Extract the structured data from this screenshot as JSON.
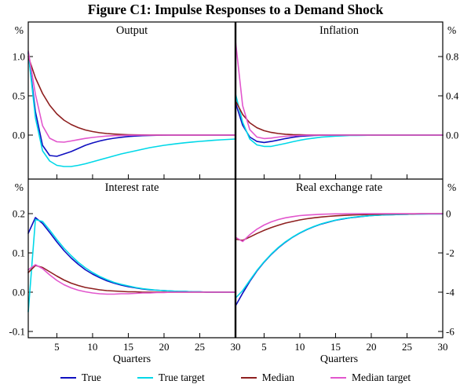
{
  "title": "Figure C1: Impulse Responses to a Demand Shock",
  "legend": [
    {
      "label": "True",
      "color": "#0f0fc0"
    },
    {
      "label": "True target",
      "color": "#00d8e8"
    },
    {
      "label": "Median",
      "color": "#8e1f1f"
    },
    {
      "label": "Median target",
      "color": "#e256cd"
    }
  ],
  "chart_data": [
    {
      "type": "line",
      "title": "Output",
      "unit": "%",
      "axis_side": "left",
      "xlabel": "",
      "xlim": [
        1,
        30
      ],
      "xticks": [
        5,
        10,
        15,
        20,
        25,
        30
      ],
      "ylim": [
        -0.56,
        1.44
      ],
      "yticks": [
        {
          "label": "1.0",
          "value": 1.0
        },
        {
          "label": "0.5",
          "value": 0.5
        },
        {
          "label": "0.0",
          "value": 0.0
        }
      ],
      "series": [
        {
          "name": "True",
          "values": [
            1.05,
            0.3,
            -0.13,
            -0.26,
            -0.27,
            -0.24,
            -0.21,
            -0.17,
            -0.13,
            -0.1,
            -0.075,
            -0.055,
            -0.04,
            -0.028,
            -0.018,
            -0.012,
            -0.007,
            -0.004,
            -0.002,
            -0.001,
            0,
            0,
            0,
            0,
            0,
            0,
            0,
            0,
            0,
            0
          ]
        },
        {
          "name": "True target",
          "values": [
            1.05,
            0.22,
            -0.2,
            -0.33,
            -0.385,
            -0.4,
            -0.4,
            -0.385,
            -0.365,
            -0.34,
            -0.315,
            -0.29,
            -0.265,
            -0.24,
            -0.22,
            -0.2,
            -0.18,
            -0.16,
            -0.145,
            -0.13,
            -0.118,
            -0.107,
            -0.097,
            -0.088,
            -0.08,
            -0.073,
            -0.066,
            -0.06,
            -0.055,
            -0.05
          ]
        },
        {
          "name": "Median",
          "values": [
            1.0,
            0.73,
            0.53,
            0.38,
            0.27,
            0.19,
            0.135,
            0.095,
            0.065,
            0.045,
            0.03,
            0.02,
            0.013,
            0.008,
            0.005,
            0.003,
            0.002,
            0.001,
            0.001,
            0,
            0,
            0,
            0,
            0,
            0,
            0,
            0,
            0,
            0,
            0
          ]
        },
        {
          "name": "Median target",
          "values": [
            1.07,
            0.52,
            0.12,
            -0.04,
            -0.085,
            -0.09,
            -0.075,
            -0.058,
            -0.042,
            -0.03,
            -0.02,
            -0.012,
            -0.007,
            -0.004,
            -0.002,
            -0.001,
            0,
            0,
            0,
            0,
            0,
            0,
            0,
            0,
            0,
            0,
            0,
            0,
            0,
            0
          ]
        }
      ]
    },
    {
      "type": "line",
      "title": "Inflation",
      "unit": "%",
      "axis_side": "right",
      "xlabel": "",
      "xlim": [
        1,
        30
      ],
      "xticks": [
        5,
        10,
        15,
        20,
        25,
        30
      ],
      "ylim": [
        -0.448,
        1.152
      ],
      "yticks": [
        {
          "label": "0.8",
          "value": 0.8
        },
        {
          "label": "0.4",
          "value": 0.4
        },
        {
          "label": "0.0",
          "value": 0.0
        }
      ],
      "series": [
        {
          "name": "True",
          "values": [
            0.33,
            0.1,
            -0.02,
            -0.065,
            -0.075,
            -0.065,
            -0.05,
            -0.035,
            -0.022,
            -0.013,
            -0.007,
            -0.003,
            -0.001,
            0,
            0,
            0,
            0,
            0,
            0,
            0,
            0,
            0,
            0,
            0,
            0,
            0,
            0,
            0,
            0,
            0
          ]
        },
        {
          "name": "True target",
          "values": [
            0.42,
            0.13,
            -0.04,
            -0.1,
            -0.115,
            -0.115,
            -0.1,
            -0.085,
            -0.068,
            -0.053,
            -0.04,
            -0.03,
            -0.021,
            -0.015,
            -0.01,
            -0.007,
            -0.004,
            -0.003,
            -0.002,
            -0.001,
            0,
            0,
            0,
            0,
            0,
            0,
            0,
            0,
            0,
            0
          ]
        },
        {
          "name": "Median",
          "values": [
            0.35,
            0.21,
            0.125,
            0.075,
            0.045,
            0.027,
            0.016,
            0.009,
            0.005,
            0.003,
            0.002,
            0.001,
            0.001,
            0,
            0,
            0,
            0,
            0,
            0,
            0,
            0,
            0,
            0,
            0,
            0,
            0,
            0,
            0,
            0,
            0
          ]
        },
        {
          "name": "Median target",
          "values": [
            0.96,
            0.3,
            0.055,
            -0.02,
            -0.035,
            -0.03,
            -0.02,
            -0.012,
            -0.006,
            -0.003,
            -0.001,
            0,
            0,
            0,
            0,
            0,
            0,
            0,
            0,
            0,
            0,
            0,
            0,
            0,
            0,
            0,
            0,
            0,
            0,
            0
          ]
        }
      ]
    },
    {
      "type": "line",
      "title": "Interest rate",
      "unit": "%",
      "axis_side": "left",
      "xlabel": "Quarters",
      "xlim": [
        1,
        30
      ],
      "xticks": [
        5,
        10,
        15,
        20,
        25,
        30
      ],
      "ylim": [
        -0.116,
        0.288
      ],
      "yticks": [
        {
          "label": "0.2",
          "value": 0.2
        },
        {
          "label": "0.1",
          "value": 0.1
        },
        {
          "label": "0.0",
          "value": 0.0
        },
        {
          "label": "-0.1",
          "value": -0.1
        }
      ],
      "series": [
        {
          "name": "True",
          "values": [
            0.15,
            0.19,
            0.175,
            0.152,
            0.128,
            0.106,
            0.087,
            0.071,
            0.057,
            0.046,
            0.037,
            0.029,
            0.023,
            0.018,
            0.014,
            0.011,
            0.008,
            0.006,
            0.005,
            0.004,
            0.003,
            0.002,
            0.002,
            0.001,
            0.001,
            0,
            0,
            0,
            0,
            0
          ]
        },
        {
          "name": "True target",
          "values": [
            -0.05,
            0.185,
            0.18,
            0.158,
            0.134,
            0.112,
            0.093,
            0.076,
            0.062,
            0.05,
            0.04,
            0.032,
            0.025,
            0.02,
            0.016,
            0.012,
            0.009,
            0.007,
            0.005,
            0.004,
            0.003,
            0.002,
            0.002,
            0.001,
            0.001,
            0,
            0,
            0,
            0,
            0
          ]
        },
        {
          "name": "Median",
          "values": [
            0.05,
            0.068,
            0.063,
            0.052,
            0.041,
            0.031,
            0.023,
            0.017,
            0.012,
            0.009,
            0.006,
            0.004,
            0.003,
            0.002,
            0.001,
            0.001,
            0,
            0,
            0,
            0,
            0,
            0,
            0,
            0,
            0,
            0,
            0,
            0,
            0,
            0
          ]
        },
        {
          "name": "Median target",
          "values": [
            0.057,
            0.07,
            0.06,
            0.044,
            0.03,
            0.019,
            0.011,
            0.005,
            0.001,
            -0.002,
            -0.004,
            -0.005,
            -0.005,
            -0.004,
            -0.004,
            -0.003,
            -0.002,
            -0.002,
            -0.001,
            -0.001,
            0,
            0,
            0,
            0,
            0,
            0,
            0,
            0,
            0,
            0
          ]
        }
      ]
    },
    {
      "type": "line",
      "title": "Real exchange rate",
      "unit": "%",
      "axis_side": "right",
      "xlabel": "Quarters",
      "xlim": [
        1,
        30
      ],
      "xticks": [
        5,
        10,
        15,
        20,
        25,
        30
      ],
      "ylim": [
        -6.32,
        1.76
      ],
      "yticks": [
        {
          "label": "0",
          "value": 0
        },
        {
          "label": "-2",
          "value": -2
        },
        {
          "label": "-4",
          "value": -4
        },
        {
          "label": "-6",
          "value": -6
        }
      ],
      "series": [
        {
          "name": "True",
          "values": [
            -4.7,
            -4.05,
            -3.45,
            -2.92,
            -2.47,
            -2.08,
            -1.74,
            -1.45,
            -1.2,
            -0.99,
            -0.81,
            -0.66,
            -0.53,
            -0.43,
            -0.34,
            -0.27,
            -0.21,
            -0.17,
            -0.13,
            -0.1,
            -0.08,
            -0.06,
            -0.05,
            -0.04,
            -0.03,
            -0.02,
            -0.02,
            -0.01,
            -0.01,
            -0.01
          ]
        },
        {
          "name": "True target",
          "values": [
            -4.3,
            -3.92,
            -3.4,
            -2.89,
            -2.45,
            -2.06,
            -1.72,
            -1.43,
            -1.19,
            -0.98,
            -0.8,
            -0.65,
            -0.52,
            -0.42,
            -0.33,
            -0.26,
            -0.21,
            -0.16,
            -0.13,
            -0.1,
            -0.08,
            -0.06,
            -0.05,
            -0.04,
            -0.03,
            -0.02,
            -0.02,
            -0.01,
            -0.01,
            -0.01
          ]
        },
        {
          "name": "Median",
          "values": [
            -1.3,
            -1.36,
            -1.19,
            -1.01,
            -0.85,
            -0.71,
            -0.59,
            -0.48,
            -0.4,
            -0.32,
            -0.26,
            -0.21,
            -0.17,
            -0.14,
            -0.11,
            -0.09,
            -0.07,
            -0.06,
            -0.05,
            -0.04,
            -0.03,
            -0.02,
            -0.02,
            -0.01,
            -0.01,
            -0.01,
            0,
            0,
            0,
            0
          ]
        },
        {
          "name": "Median target",
          "values": [
            -1.2,
            -1.42,
            -1.07,
            -0.79,
            -0.58,
            -0.42,
            -0.3,
            -0.21,
            -0.15,
            -0.1,
            -0.07,
            -0.05,
            -0.03,
            -0.02,
            -0.01,
            -0.01,
            0,
            0,
            0,
            0,
            0,
            0,
            0,
            0,
            0,
            0,
            0,
            0,
            0,
            0
          ]
        }
      ]
    }
  ]
}
